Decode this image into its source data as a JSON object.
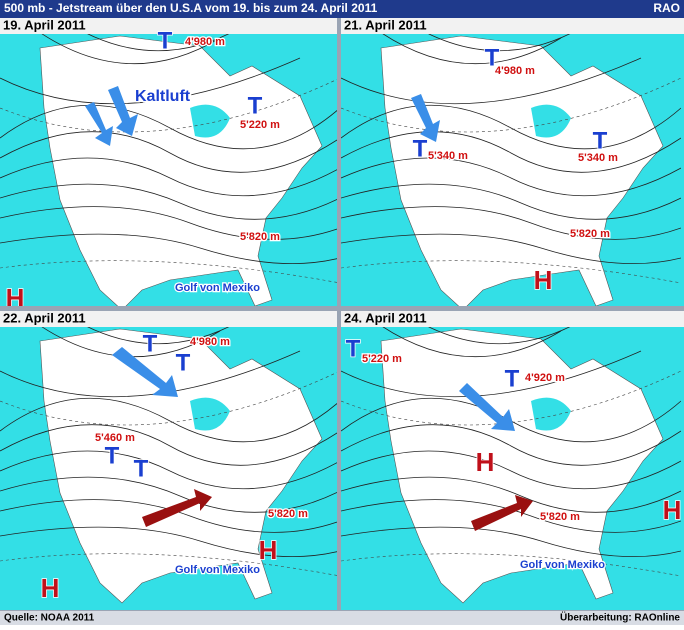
{
  "header": {
    "title": "500 mb - Jetstream über den U.S.A vom 19. bis zum 24. April 2011",
    "logo": "RAO"
  },
  "panels": [
    {
      "date": "19. April 2011",
      "labels": [
        "T",
        "4'980 m",
        "Kaltluft",
        "T",
        "5'220 m",
        "5'820 m",
        "Golf von Mexiko",
        "H"
      ]
    },
    {
      "date": "21. April 2011",
      "labels": [
        "T",
        "4'980 m",
        "T",
        "5'340 m",
        "T",
        "5'340 m",
        "5'820 m",
        "H"
      ]
    },
    {
      "date": "22. April 2011",
      "labels": [
        "T",
        "T",
        "4'980 m",
        "5'460 m",
        "T",
        "T",
        "5'820 m",
        "H",
        "Golf von Mexiko",
        "H"
      ]
    },
    {
      "date": "24. April 2011",
      "labels": [
        "T",
        "5'220 m",
        "T",
        "4'920 m",
        "H",
        "5'820 m",
        "H",
        "Golf von Mexiko"
      ]
    }
  ],
  "footer": {
    "source": "Quelle: NOAA 2011",
    "credit": "Überarbeitung: RAOnline"
  }
}
